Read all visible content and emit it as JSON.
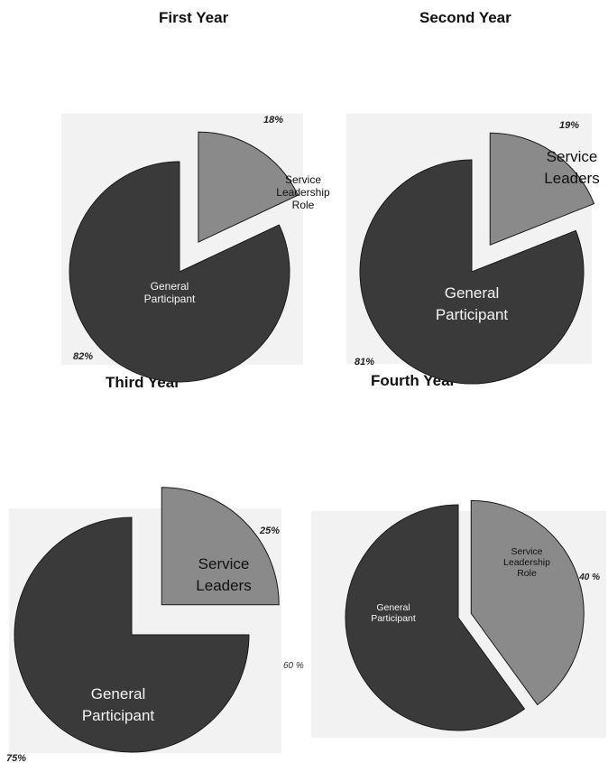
{
  "chart_data": [
    {
      "type": "pie",
      "title": "First Year",
      "slices": [
        {
          "label_lines": [
            "Service",
            "Leadership",
            "Role"
          ],
          "value": 18,
          "pct_label": "18%",
          "color": "#8a8a8a",
          "text_color": "#111111",
          "exploded": true
        },
        {
          "label_lines": [
            "General",
            "Participant"
          ],
          "value": 82,
          "pct_label": "82%",
          "color": "#3a3a3a",
          "text_color": "#f4f4f4",
          "exploded": false
        }
      ]
    },
    {
      "type": "pie",
      "title": "Second Year",
      "slices": [
        {
          "label_lines": [
            "Service",
            "Leaders"
          ],
          "value": 19,
          "pct_label": "19%",
          "color": "#8a8a8a",
          "text_color": "#111111",
          "exploded": true
        },
        {
          "label_lines": [
            "General",
            "Participant"
          ],
          "value": 81,
          "pct_label": "81%",
          "color": "#3a3a3a",
          "text_color": "#f4f4f4",
          "exploded": false
        }
      ]
    },
    {
      "type": "pie",
      "title": "Third Year",
      "slices": [
        {
          "label_lines": [
            "Service",
            "Leaders"
          ],
          "value": 25,
          "pct_label": "25%",
          "color": "#8a8a8a",
          "text_color": "#111111",
          "exploded": true
        },
        {
          "label_lines": [
            "General",
            "Participant"
          ],
          "value": 75,
          "pct_label": "75%",
          "color": "#3a3a3a",
          "text_color": "#f4f4f4",
          "exploded": false
        }
      ]
    },
    {
      "type": "pie",
      "title": "Fourth Year",
      "slices": [
        {
          "label_lines": [
            "Service",
            "Leadership",
            "Role"
          ],
          "value": 40,
          "pct_label": "40 %",
          "color": "#8a8a8a",
          "text_color": "#111111",
          "exploded": true
        },
        {
          "label_lines": [
            "General",
            "Participant"
          ],
          "value": 60,
          "pct_label": "60 %",
          "color": "#3a3a3a",
          "text_color": "#f4f4f4",
          "exploded": false
        }
      ]
    }
  ]
}
